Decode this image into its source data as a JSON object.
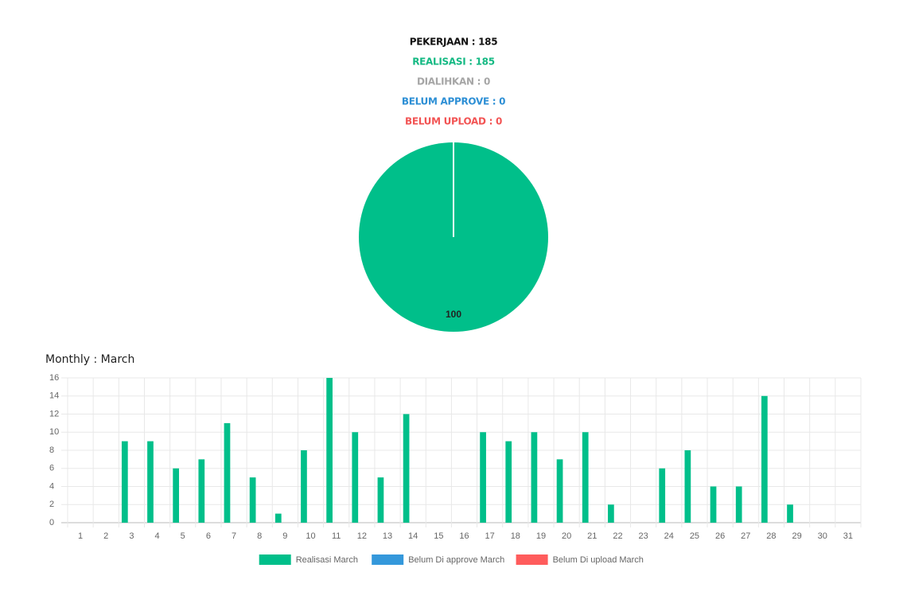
{
  "summary": [
    "PEKERJAAN : 185",
    "REALISASI : 185",
    "DIALIHKAN : 0",
    "BELUM APPROVE : 0",
    "BELUM UPLOAD : 0"
  ],
  "summary_colors": [
    "#111111",
    "#14b983",
    "#a6a6a6",
    "#2d8fd5",
    "#f25454"
  ],
  "chart_data": [
    {
      "type": "pie",
      "values": [
        100
      ],
      "colors": [
        "#00bf8a"
      ]
    },
    {
      "type": "bar",
      "title": "Monthly : March",
      "categories": [
        "1",
        "2",
        "3",
        "4",
        "5",
        "6",
        "7",
        "8",
        "9",
        "10",
        "11",
        "12",
        "13",
        "14",
        "15",
        "16",
        "17",
        "18",
        "19",
        "20",
        "21",
        "22",
        "23",
        "24",
        "25",
        "26",
        "27",
        "28",
        "29",
        "30",
        "31"
      ],
      "series": [
        {
          "name": "Realisasi March",
          "color": "#00bf8a",
          "values": [
            0,
            0,
            9,
            9,
            6,
            7,
            11,
            5,
            1,
            8,
            16,
            10,
            5,
            12,
            0,
            0,
            10,
            9,
            10,
            7,
            10,
            2,
            0,
            6,
            8,
            4,
            4,
            14,
            2,
            0,
            0
          ]
        },
        {
          "name": "Belum Di approve March",
          "color": "#3498db",
          "values": [
            0,
            0,
            0,
            0,
            0,
            0,
            0,
            0,
            0,
            0,
            0,
            0,
            0,
            0,
            0,
            0,
            0,
            0,
            0,
            0,
            0,
            0,
            0,
            0,
            0,
            0,
            0,
            0,
            0,
            0,
            0
          ]
        },
        {
          "name": "Belum Di upload March",
          "color": "#ff5c5c",
          "values": [
            0,
            0,
            0,
            0,
            0,
            0,
            0,
            0,
            0,
            0,
            0,
            0,
            0,
            0,
            0,
            0,
            0,
            0,
            0,
            0,
            0,
            0,
            0,
            0,
            0,
            0,
            0,
            0,
            0,
            0,
            0
          ]
        }
      ],
      "ylim": [
        0,
        16
      ],
      "yticks": [
        0,
        2,
        4,
        6,
        8,
        10,
        12,
        14,
        16
      ],
      "grid": true,
      "legend": "bottom"
    }
  ]
}
